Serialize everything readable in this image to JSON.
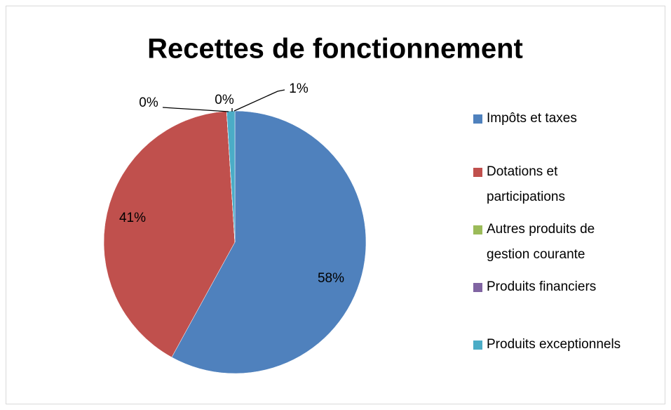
{
  "chart_data": {
    "type": "pie",
    "title": "Recettes de fonctionnement",
    "categories": [
      "Impôts et taxes",
      "Dotations et participations",
      "Autres produits de gestion courante",
      "Produits financiers",
      "Produits exceptionnels"
    ],
    "values": [
      58,
      41,
      0,
      0,
      1
    ],
    "value_labels": [
      "58%",
      "41%",
      "0%",
      "0%",
      "1%"
    ],
    "colors": [
      "#4f81bd",
      "#c0504d",
      "#9bbb59",
      "#8064a2",
      "#4bacc6"
    ],
    "legend": "right"
  }
}
